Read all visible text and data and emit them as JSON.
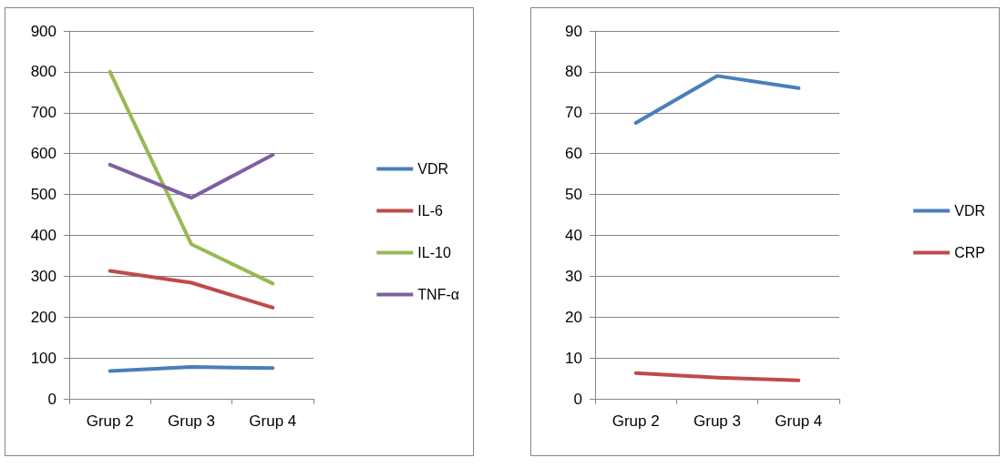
{
  "chart_data": [
    {
      "type": "line",
      "categories": [
        "Grup 2",
        "Grup 3",
        "Grup 4"
      ],
      "series": [
        {
          "name": "VDR",
          "color": "#4a7ebb",
          "values": [
            68,
            78,
            75
          ]
        },
        {
          "name": "IL-6",
          "color": "#be4b48",
          "values": [
            313,
            284,
            223
          ]
        },
        {
          "name": "IL-10",
          "color": "#98b954",
          "values": [
            800,
            378,
            282
          ]
        },
        {
          "name": "TNF-α",
          "color": "#7d60a0",
          "values": [
            573,
            492,
            597
          ]
        }
      ],
      "ylim": [
        0,
        900
      ],
      "yticks": [
        0,
        100,
        200,
        300,
        400,
        500,
        600,
        700,
        800,
        900
      ],
      "grid": "y",
      "legend": "right",
      "marker": "none",
      "line_style": "solid"
    },
    {
      "type": "line",
      "categories": [
        "Grup 2",
        "Grup 3",
        "Grup 4"
      ],
      "series": [
        {
          "name": "VDR",
          "color": "#4a7ebb",
          "values": [
            67.5,
            79,
            76
          ]
        },
        {
          "name": "CRP",
          "color": "#be4b48",
          "values": [
            6.3,
            5.2,
            4.5
          ]
        }
      ],
      "ylim": [
        0,
        90
      ],
      "yticks": [
        0,
        10,
        20,
        30,
        40,
        50,
        60,
        70,
        80,
        90
      ],
      "grid": "y",
      "legend": "right",
      "marker": "none",
      "line_style": "solid"
    }
  ]
}
